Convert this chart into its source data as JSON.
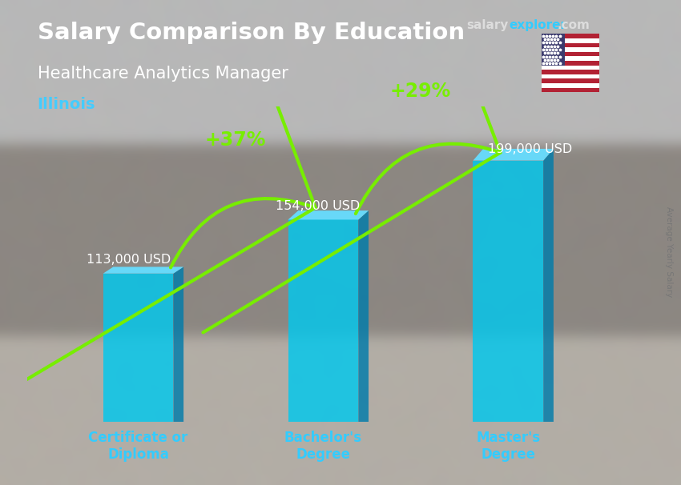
{
  "title_bold": "Salary Comparison By Education",
  "subtitle": "Healthcare Analytics Manager",
  "location": "Illinois",
  "ylabel": "Average Yearly Salary",
  "categories": [
    "Certificate or\nDiploma",
    "Bachelor's\nDegree",
    "Master's\nDegree"
  ],
  "values": [
    113000,
    154000,
    199000
  ],
  "value_labels": [
    "113,000 USD",
    "154,000 USD",
    "199,000 USD"
  ],
  "pct_labels": [
    "+37%",
    "+29%"
  ],
  "bar_front_color": "#00C8EE",
  "bar_side_color": "#007BAA",
  "bar_top_color": "#66DDFF",
  "bar_alpha": 0.82,
  "arrow_color": "#77EE00",
  "title_color": "#FFFFFF",
  "subtitle_color": "#FFFFFF",
  "location_color": "#44CCFF",
  "value_label_color": "#FFFFFF",
  "pct_label_color": "#99FF00",
  "category_label_color": "#33CCFF",
  "watermark_salary_color": "#DDDDDD",
  "watermark_explorer_color": "#33CCFF",
  "watermark_com_color": "#DDDDDD",
  "bg_color": "#888888",
  "bar_positions": [
    1.0,
    2.0,
    3.0
  ],
  "bar_width": 0.38,
  "ylim": [
    0,
    240000
  ],
  "xlim": [
    0.4,
    3.75
  ]
}
